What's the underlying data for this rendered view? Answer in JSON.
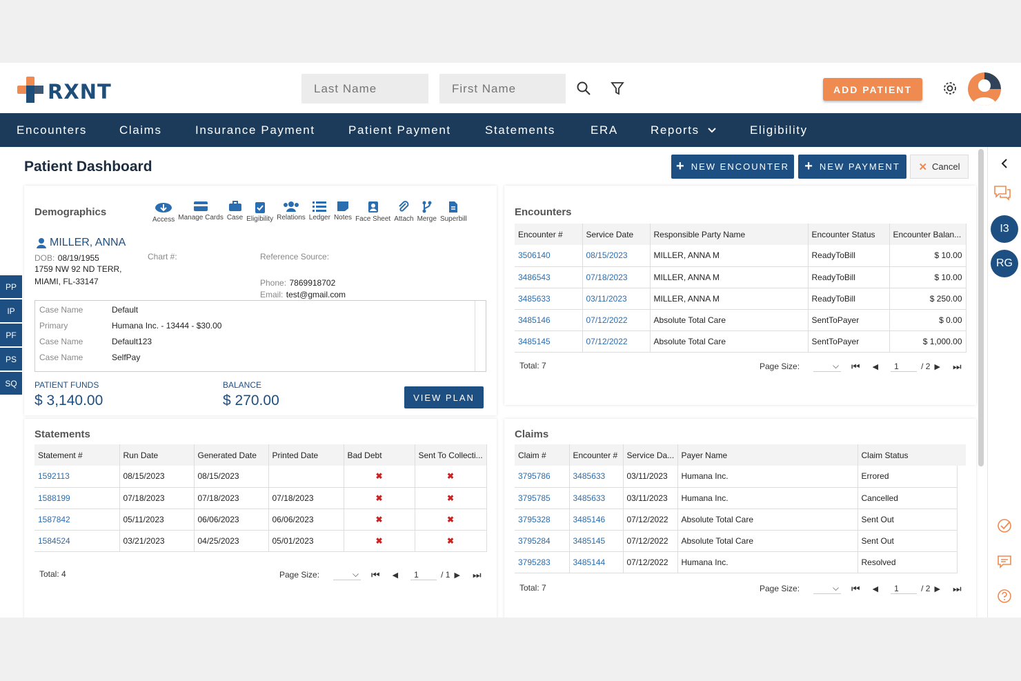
{
  "brand": {
    "name": "RXNT"
  },
  "search": {
    "last_placeholder": "Last Name",
    "first_placeholder": "First Name"
  },
  "header": {
    "add_patient": "ADD PATIENT"
  },
  "nav": {
    "items": [
      "Encounters",
      "Claims",
      "Insurance Payment",
      "Patient Payment",
      "Statements",
      "ERA",
      "Reports",
      "Eligibility"
    ]
  },
  "page": {
    "title": "Patient Dashboard",
    "new_encounter": "NEW ENCOUNTER",
    "new_payment": "NEW PAYMENT",
    "cancel": "Cancel"
  },
  "side_tabs": [
    "PP",
    "IP",
    "PF",
    "PS",
    "SQ"
  ],
  "rail": {
    "circle1": "I3",
    "circle2": "RG"
  },
  "demographics": {
    "title": "Demographics",
    "tools": [
      "Access",
      "Manage Cards",
      "Case",
      "Eligibility",
      "Relations",
      "Ledger",
      "Notes",
      "Face Sheet",
      "Attach",
      "Merge",
      "Superbill"
    ],
    "patient_name": "MILLER, ANNA",
    "dob_label": "DOB:",
    "dob": "08/19/1955",
    "chart_label": "Chart #:",
    "ref_label": "Reference Source:",
    "addr1": "1759 NW 92 ND TERR,",
    "addr2": "MIAMI, FL-33147",
    "phone_label": "Phone:",
    "phone": "7869918702",
    "email_label": "Email:",
    "email": "test@gmail.com",
    "cases": [
      {
        "label": "Case Name",
        "value": "Default"
      },
      {
        "label": "Primary",
        "value": "Humana Inc. - 13444 - $30.00"
      },
      {
        "label": "Case Name",
        "value": "Default123"
      },
      {
        "label": "Case Name",
        "value": "SelfPay"
      }
    ],
    "funds_label": "PATIENT FUNDS",
    "funds": "$ 3,140.00",
    "balance_label": "BALANCE",
    "balance": "$ 270.00",
    "view_plan": "VIEW PLAN"
  },
  "encounters": {
    "title": "Encounters",
    "headers": [
      "Encounter #",
      "Service Date",
      "Responsible Party Name",
      "Encounter Status",
      "Encounter Balan..."
    ],
    "rows": [
      [
        "3506140",
        "08/15/2023",
        "MILLER, ANNA M",
        "ReadyToBill",
        "$ 10.00"
      ],
      [
        "3486543",
        "07/18/2023",
        "MILLER, ANNA M",
        "ReadyToBill",
        "$ 10.00"
      ],
      [
        "3485633",
        "03/11/2023",
        "MILLER, ANNA M",
        "ReadyToBill",
        "$ 250.00"
      ],
      [
        "3485146",
        "07/12/2022",
        "Absolute Total Care",
        "SentToPayer",
        "$ 0.00"
      ],
      [
        "3485145",
        "07/12/2022",
        "Absolute Total Care",
        "SentToPayer",
        "$ 1,000.00"
      ]
    ],
    "total": "Total: 7",
    "page_size": "Page Size:",
    "page": "1",
    "of": "/ 2"
  },
  "statements": {
    "title": "Statements",
    "headers": [
      "Statement #",
      "Run Date",
      "Generated Date",
      "Printed Date",
      "Bad Debt",
      "Sent To Collecti..."
    ],
    "rows": [
      [
        "1592113",
        "08/15/2023",
        "08/15/2023",
        "",
        "✖",
        "✖"
      ],
      [
        "1588199",
        "07/18/2023",
        "07/18/2023",
        "07/18/2023",
        "✖",
        "✖"
      ],
      [
        "1587842",
        "05/11/2023",
        "06/06/2023",
        "06/06/2023",
        "✖",
        "✖"
      ],
      [
        "1584524",
        "03/21/2023",
        "04/25/2023",
        "05/01/2023",
        "✖",
        "✖"
      ]
    ],
    "total": "Total: 4",
    "page_size": "Page Size:",
    "page": "1",
    "of": "/ 1"
  },
  "claims": {
    "title": "Claims",
    "headers": [
      "Claim #",
      "Encounter #",
      "Service Da...",
      "Payer Name",
      "Claim Status"
    ],
    "rows": [
      [
        "3795786",
        "3485633",
        "03/11/2023",
        "Humana Inc.",
        "Errored"
      ],
      [
        "3795785",
        "3485633",
        "03/11/2023",
        "Humana Inc.",
        "Cancelled"
      ],
      [
        "3795328",
        "3485146",
        "07/12/2022",
        "Absolute Total Care",
        "Sent Out"
      ],
      [
        "3795284",
        "3485145",
        "07/12/2022",
        "Absolute Total Care",
        "Sent Out"
      ],
      [
        "3795283",
        "3485144",
        "07/12/2022",
        "Humana Inc.",
        "Resolved"
      ]
    ],
    "total": "Total: 7",
    "page_size": "Page Size:",
    "page": "1",
    "of": "/ 2"
  },
  "colors": {
    "navy": "#1c3b5a",
    "blue": "#1e4f82",
    "orange": "#ef8a50",
    "link": "#2a6db0"
  }
}
